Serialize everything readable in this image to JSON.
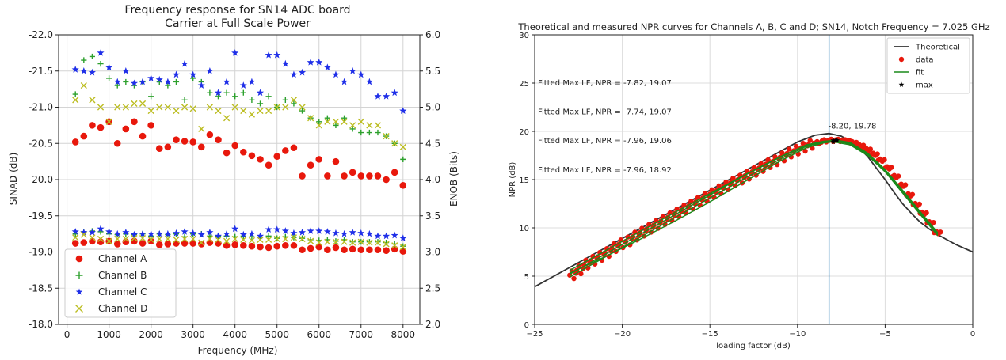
{
  "chart_data": [
    {
      "type": "scatter",
      "title": "Frequency response for SN14 ADC board",
      "subtitle": "Carrier at Full Scale Power",
      "xlabel": "Frequency (MHz)",
      "ylabel": "SINAD (dB)",
      "y2label": "ENOB (Bits)",
      "xlim": [
        -200,
        8400
      ],
      "ylim": [
        -22.0,
        -18.0
      ],
      "y2lim": [
        6.0,
        2.0
      ],
      "xticks": [
        "0",
        "1000",
        "2000",
        "3000",
        "4000",
        "5000",
        "6000",
        "7000",
        "8000"
      ],
      "yticks": [
        "-22.0",
        "-21.5",
        "-21.0",
        "-20.5",
        "-20.0",
        "-19.5",
        "-19.0",
        "-18.5",
        "-18.0"
      ],
      "y2ticks": [
        "6.0",
        "5.5",
        "5.0",
        "4.5",
        "4.0",
        "3.5",
        "3.0",
        "2.5",
        "2.0"
      ],
      "grid": true,
      "legend_position": "bottom-left",
      "colors": {
        "A": "#e8180c",
        "B": "#2ca02c",
        "C": "#1f2fe8",
        "D": "#bcbd22"
      },
      "x": [
        200,
        400,
        600,
        800,
        1000,
        1200,
        1400,
        1600,
        1800,
        2000,
        2200,
        2400,
        2600,
        2800,
        3000,
        3200,
        3400,
        3600,
        3800,
        4000,
        4200,
        4400,
        4600,
        4800,
        5000,
        5200,
        5400,
        5600,
        5800,
        6000,
        6200,
        6400,
        6600,
        6800,
        7000,
        7200,
        7400,
        7600,
        7800,
        8000
      ],
      "series": [
        {
          "name": "Channel A",
          "axis": "left",
          "marker": "circle",
          "values": [
            -20.52,
            -20.6,
            -20.75,
            -20.72,
            -20.8,
            -20.5,
            -20.7,
            -20.8,
            -20.6,
            -20.75,
            -20.43,
            -20.45,
            -20.55,
            -20.53,
            -20.52,
            -20.45,
            -20.62,
            -20.55,
            -20.37,
            -20.47,
            -20.38,
            -20.33,
            -20.28,
            -20.2,
            -20.32,
            -20.4,
            -20.44,
            -20.05,
            -20.2,
            -20.28,
            -20.05,
            -20.25,
            -20.05,
            -20.1,
            -20.05,
            -20.05,
            -20.05,
            -20.0,
            -20.1,
            -19.92
          ]
        },
        {
          "name": "Channel B",
          "axis": "left",
          "marker": "plus",
          "values": [
            -21.18,
            -21.65,
            -21.7,
            -21.6,
            -21.4,
            -21.3,
            -21.35,
            -21.3,
            -21.35,
            -21.15,
            -21.35,
            -21.3,
            -21.35,
            -21.1,
            -21.4,
            -21.35,
            -21.2,
            -21.15,
            -21.2,
            -21.15,
            -21.2,
            -21.1,
            -21.05,
            -21.15,
            -21.0,
            -21.1,
            -21.05,
            -20.95,
            -20.85,
            -20.8,
            -20.85,
            -20.75,
            -20.85,
            -20.7,
            -20.65,
            -20.65,
            -20.65,
            -20.6,
            -20.5,
            -20.28
          ]
        },
        {
          "name": "Channel C",
          "axis": "left",
          "marker": "star",
          "values": [
            -21.52,
            -21.5,
            -21.48,
            -21.75,
            -21.55,
            -21.35,
            -21.5,
            -21.33,
            -21.35,
            -21.4,
            -21.38,
            -21.35,
            -21.45,
            -21.6,
            -21.45,
            -21.3,
            -21.5,
            -21.2,
            -21.35,
            -21.75,
            -21.3,
            -21.35,
            -21.2,
            -21.72,
            -21.72,
            -21.6,
            -21.45,
            -21.48,
            -21.62,
            -21.62,
            -21.55,
            -21.45,
            -21.35,
            -21.5,
            -21.45,
            -21.35,
            -21.15,
            -21.15,
            -21.2,
            -20.95
          ]
        },
        {
          "name": "Channel D",
          "axis": "left",
          "marker": "x",
          "values": [
            -21.1,
            -21.3,
            -21.1,
            -21.0,
            -20.8,
            -21.0,
            -21.0,
            -21.05,
            -21.05,
            -20.95,
            -21.0,
            -21.0,
            -20.95,
            -21.0,
            -20.98,
            -20.7,
            -21.0,
            -20.95,
            -20.85,
            -21.0,
            -20.95,
            -20.9,
            -20.95,
            -20.95,
            -21.0,
            -21.0,
            -21.1,
            -21.0,
            -20.85,
            -20.75,
            -20.8,
            -20.8,
            -20.8,
            -20.75,
            -20.8,
            -20.75,
            -20.75,
            -20.6,
            -20.5,
            -20.45
          ]
        },
        {
          "name": "Channel A",
          "axis": "right",
          "marker": "circle",
          "in_legend": false,
          "values": [
            3.12,
            3.13,
            3.15,
            3.14,
            3.15,
            3.11,
            3.14,
            3.15,
            3.12,
            3.15,
            3.1,
            3.11,
            3.12,
            3.12,
            3.12,
            3.11,
            3.13,
            3.12,
            3.09,
            3.1,
            3.09,
            3.08,
            3.07,
            3.06,
            3.08,
            3.09,
            3.09,
            3.03,
            3.05,
            3.07,
            3.03,
            3.06,
            3.03,
            3.04,
            3.03,
            3.03,
            3.03,
            3.02,
            3.04,
            3.01
          ]
        },
        {
          "name": "Channel B",
          "axis": "right",
          "marker": "plus",
          "in_legend": false,
          "values": [
            3.25,
            3.28,
            3.29,
            3.28,
            3.25,
            3.24,
            3.25,
            3.24,
            3.25,
            3.22,
            3.25,
            3.24,
            3.25,
            3.21,
            3.25,
            3.25,
            3.22,
            3.22,
            3.22,
            3.21,
            3.22,
            3.21,
            3.2,
            3.22,
            3.19,
            3.21,
            3.2,
            3.19,
            3.17,
            3.16,
            3.17,
            3.15,
            3.17,
            3.14,
            3.14,
            3.14,
            3.14,
            3.13,
            3.11,
            3.08
          ]
        },
        {
          "name": "Channel C",
          "axis": "right",
          "marker": "star",
          "in_legend": false,
          "values": [
            3.28,
            3.27,
            3.27,
            3.32,
            3.28,
            3.25,
            3.27,
            3.24,
            3.25,
            3.25,
            3.25,
            3.25,
            3.26,
            3.28,
            3.26,
            3.24,
            3.27,
            3.22,
            3.25,
            3.32,
            3.24,
            3.25,
            3.22,
            3.31,
            3.31,
            3.29,
            3.26,
            3.27,
            3.29,
            3.29,
            3.28,
            3.26,
            3.25,
            3.27,
            3.26,
            3.25,
            3.22,
            3.22,
            3.23,
            3.19
          ]
        },
        {
          "name": "Channel D",
          "axis": "right",
          "marker": "x",
          "in_legend": false,
          "values": [
            3.2,
            3.24,
            3.2,
            3.18,
            3.15,
            3.18,
            3.18,
            3.19,
            3.19,
            3.17,
            3.18,
            3.18,
            3.17,
            3.18,
            3.18,
            3.13,
            3.18,
            3.17,
            3.15,
            3.18,
            3.17,
            3.16,
            3.17,
            3.17,
            3.18,
            3.18,
            3.2,
            3.18,
            3.15,
            3.13,
            3.14,
            3.14,
            3.14,
            3.13,
            3.14,
            3.13,
            3.13,
            3.11,
            3.09,
            3.07
          ]
        }
      ]
    },
    {
      "type": "line",
      "title": "Theoretical and measured NPR curves for Channels A, B, C and D; SN14, Notch Frequency = 7.025 GHz",
      "xlabel": "loading factor (dB)",
      "ylabel": "NPR (dB)",
      "xlim": [
        -25,
        0
      ],
      "ylim": [
        0,
        30
      ],
      "xticks": [
        "−25",
        "−20",
        "−15",
        "−10",
        "−5",
        "0"
      ],
      "yticks": [
        "0",
        "5",
        "10",
        "15",
        "20",
        "25",
        "30"
      ],
      "grid": true,
      "legend_position": "top-right",
      "legend": [
        "Theoretical",
        "data",
        "fit",
        "max"
      ],
      "colors": {
        "theoretical": "#333333",
        "data": "#e8180c",
        "fit": "#1a8a1a",
        "max": "#000000",
        "vline": "#1f77b4"
      },
      "vline_x": -8.2,
      "text_annotations": [
        "Fitted Max LF, NPR = -7.82, 19.07",
        "Fitted Max LF, NPR = -7.74, 19.07",
        "Fitted Max LF, NPR = -7.96, 19.06",
        "Fitted Max LF, NPR = -7.96, 18.92"
      ],
      "max_label": "-8.20, 19.78",
      "theoretical": {
        "x": [
          -25,
          -23,
          -21,
          -19,
          -17,
          -15,
          -13,
          -11,
          -10,
          -9,
          -8.2,
          -7.5,
          -7,
          -6.5,
          -6,
          -5.5,
          -5,
          -4.5,
          -4,
          -3.5,
          -3,
          -2.5,
          -2,
          -1.5,
          -1,
          -0.5,
          0
        ],
        "y": [
          3.9,
          5.9,
          7.9,
          9.9,
          11.9,
          13.9,
          15.9,
          17.9,
          18.9,
          19.6,
          19.78,
          19.5,
          19.0,
          18.3,
          17.4,
          16.2,
          15.0,
          13.7,
          12.5,
          11.5,
          10.6,
          9.9,
          9.3,
          8.8,
          8.3,
          7.9,
          7.5
        ]
      },
      "max_points": {
        "x": [
          -7.82,
          -7.74,
          -7.96,
          -7.96
        ],
        "y": [
          19.07,
          19.07,
          19.06,
          18.92
        ]
      },
      "fits": [
        {
          "x": [
            -23,
            -21,
            -19,
            -17,
            -15,
            -13,
            -11,
            -9.5,
            -8.5,
            -7.82,
            -7,
            -6,
            -5,
            -4,
            -3,
            -2
          ],
          "y": [
            5.2,
            7.25,
            9.3,
            11.35,
            13.4,
            15.45,
            17.3,
            18.55,
            18.95,
            19.07,
            18.8,
            17.7,
            16.0,
            13.8,
            11.6,
            9.4
          ]
        },
        {
          "x": [
            -23,
            -21,
            -19,
            -17,
            -15,
            -13,
            -11,
            -9.5,
            -8.5,
            -7.74,
            -7,
            -6,
            -5,
            -4,
            -3,
            -2
          ],
          "y": [
            5.6,
            7.6,
            9.6,
            11.6,
            13.55,
            15.5,
            17.35,
            18.6,
            18.98,
            19.07,
            18.85,
            17.75,
            16.05,
            13.9,
            11.7,
            9.5
          ]
        },
        {
          "x": [
            -23,
            -21,
            -19,
            -17,
            -15,
            -13,
            -11,
            -9.5,
            -8.5,
            -7.96,
            -7,
            -6,
            -5,
            -4,
            -3,
            -2
          ],
          "y": [
            4.9,
            6.95,
            9.0,
            11.05,
            13.1,
            15.15,
            17.1,
            18.45,
            18.9,
            19.06,
            18.7,
            17.6,
            15.9,
            13.7,
            11.5,
            9.3
          ]
        },
        {
          "x": [
            -23,
            -21,
            -19,
            -17,
            -15,
            -13,
            -11,
            -9.5,
            -8.5,
            -7.96,
            -7,
            -6,
            -5,
            -4,
            -3,
            -2
          ],
          "y": [
            5.3,
            7.0,
            8.8,
            10.7,
            12.7,
            14.8,
            16.9,
            18.3,
            18.8,
            18.92,
            18.6,
            17.5,
            15.8,
            13.6,
            11.4,
            9.2
          ]
        }
      ],
      "data_points": {
        "x": [
          -23,
          -22.6,
          -22.2,
          -21.8,
          -21.4,
          -21,
          -20.6,
          -20.2,
          -19.8,
          -19.4,
          -19,
          -18.6,
          -18.2,
          -17.8,
          -17.4,
          -17,
          -16.6,
          -16.2,
          -15.8,
          -15.4,
          -15,
          -14.6,
          -14.2,
          -13.8,
          -13.4,
          -13,
          -12.6,
          -12.2,
          -11.8,
          -11.4,
          -11,
          -10.6,
          -10.2,
          -9.8,
          -9.4,
          -9,
          -8.6,
          -8.2,
          -7.8,
          -7.4,
          -7,
          -6.6,
          -6.2,
          -5.8,
          -5.4,
          -5,
          -4.6,
          -4.2,
          -3.8,
          -3.4,
          -3,
          -2.6,
          -2.2
        ],
        "y": [
          5.1,
          5.6,
          6.2,
          6.6,
          7.0,
          7.4,
          7.9,
          8.3,
          8.6,
          9.1,
          9.5,
          9.9,
          10.3,
          10.7,
          11.1,
          11.5,
          11.9,
          12.3,
          12.7,
          13.1,
          13.5,
          13.9,
          14.3,
          14.7,
          15.0,
          15.4,
          15.8,
          16.2,
          16.6,
          16.9,
          17.3,
          17.7,
          18.0,
          18.3,
          18.6,
          18.8,
          19.0,
          19.05,
          19.05,
          19.0,
          18.8,
          18.5,
          18.1,
          17.6,
          17.0,
          16.2,
          15.3,
          14.4,
          13.4,
          12.4,
          11.5,
          10.5,
          9.5
        ]
      }
    }
  ]
}
